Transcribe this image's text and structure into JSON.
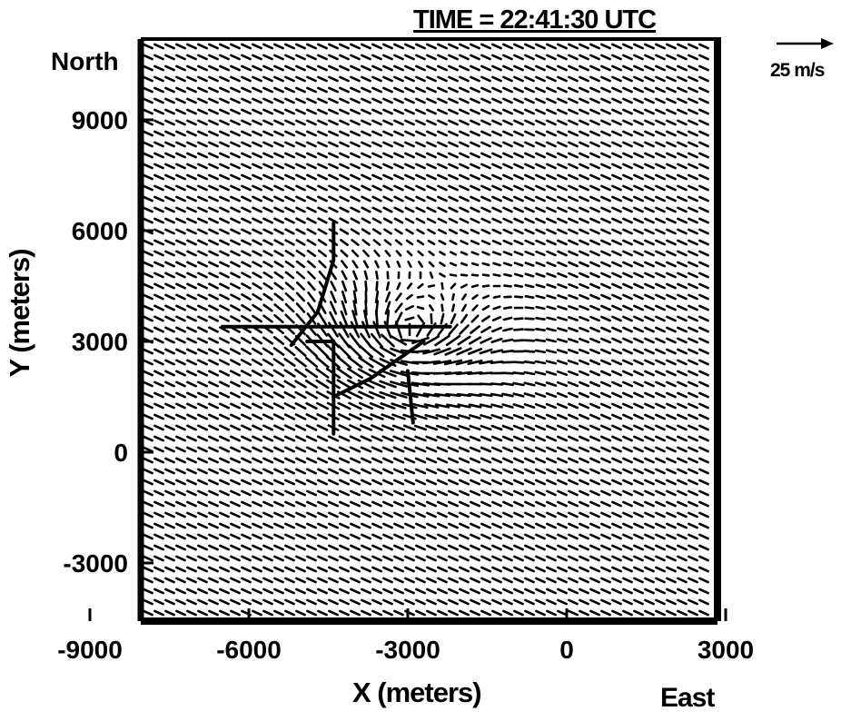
{
  "chart_data": {
    "type": "vector-field",
    "title": "TIME = 22:41:30 UTC",
    "xlabel": "X (meters)",
    "ylabel": "Y (meters)",
    "corner_labels": {
      "north": "North",
      "east": "East"
    },
    "reference_vector": {
      "label": "25 m/s",
      "speed_ms": 25
    },
    "xlim": [
      -12000,
      4000
    ],
    "ylim": [
      -4500,
      10500
    ],
    "x_ticks": [
      -9000,
      -6000,
      -3000,
      0,
      3000
    ],
    "x_tick_labels": [
      "-9000",
      "-6000",
      "-3000",
      "0",
      "3000"
    ],
    "y_ticks": [
      9000,
      6000,
      3000,
      0,
      -3000
    ],
    "y_tick_labels": [
      "9000",
      "6000",
      "3000",
      "0",
      "-3000"
    ],
    "background_wind": {
      "u_ms": 13,
      "v_ms": -6
    },
    "vortex_center": [
      -3000,
      3300
    ],
    "annotated_lines": [
      {
        "points": [
          [
            -4400,
            6200
          ],
          [
            -4400,
            5200
          ],
          [
            -4700,
            3800
          ],
          [
            -5200,
            2900
          ]
        ]
      },
      {
        "points": [
          [
            -4900,
            3000
          ],
          [
            -4400,
            3000
          ],
          [
            -4400,
            500
          ]
        ]
      },
      {
        "points": [
          [
            -4400,
            1500
          ],
          [
            -3700,
            2000
          ],
          [
            -2700,
            3000
          ]
        ]
      },
      {
        "points": [
          [
            -3000,
            2200
          ],
          [
            -2900,
            800
          ]
        ]
      },
      {
        "points": [
          [
            -6500,
            3400
          ],
          [
            -2200,
            3400
          ]
        ]
      }
    ],
    "grid": false
  }
}
